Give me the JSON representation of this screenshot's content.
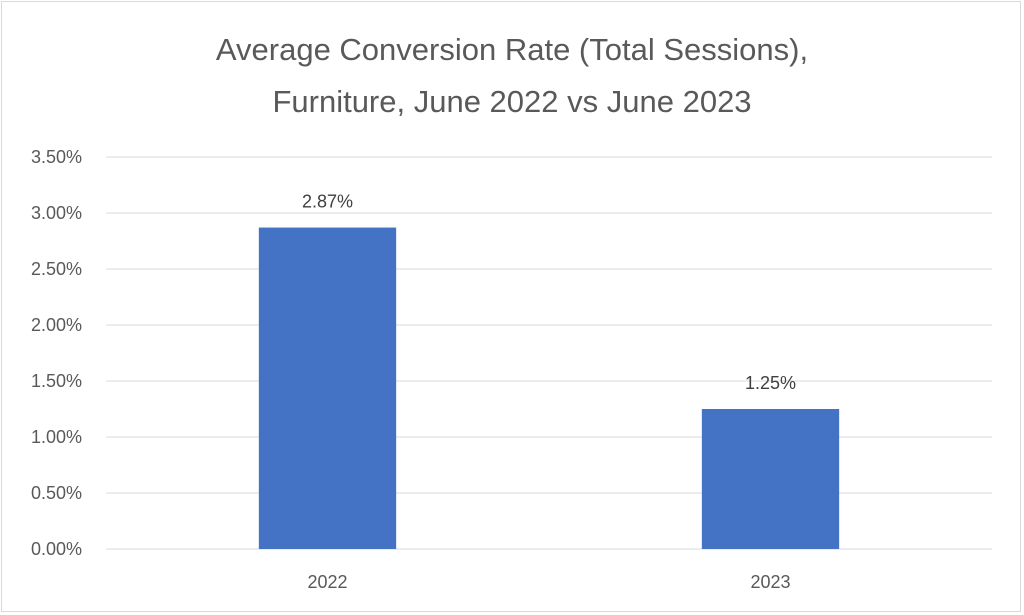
{
  "chart_data": {
    "type": "bar",
    "title_lines": [
      "Average Conversion Rate (Total Sessions),",
      "Furniture, June 2022 vs June 2023"
    ],
    "categories": [
      "2022",
      "2023"
    ],
    "values": [
      2.87,
      1.25
    ],
    "data_labels": [
      "2.87%",
      "1.25%"
    ],
    "y_ticks": [
      0,
      0.5,
      1,
      1.5,
      2,
      2.5,
      3,
      3.5
    ],
    "y_tick_labels": [
      "0.00%",
      "0.50%",
      "1.00%",
      "1.50%",
      "2.00%",
      "2.50%",
      "3.00%",
      "3.50%"
    ],
    "ylim": [
      0,
      3.5
    ],
    "xlabel": "",
    "ylabel": "",
    "grid": true,
    "legend": "none",
    "bar_color": "#4472c4",
    "grid_color": "#d9d9d9"
  }
}
